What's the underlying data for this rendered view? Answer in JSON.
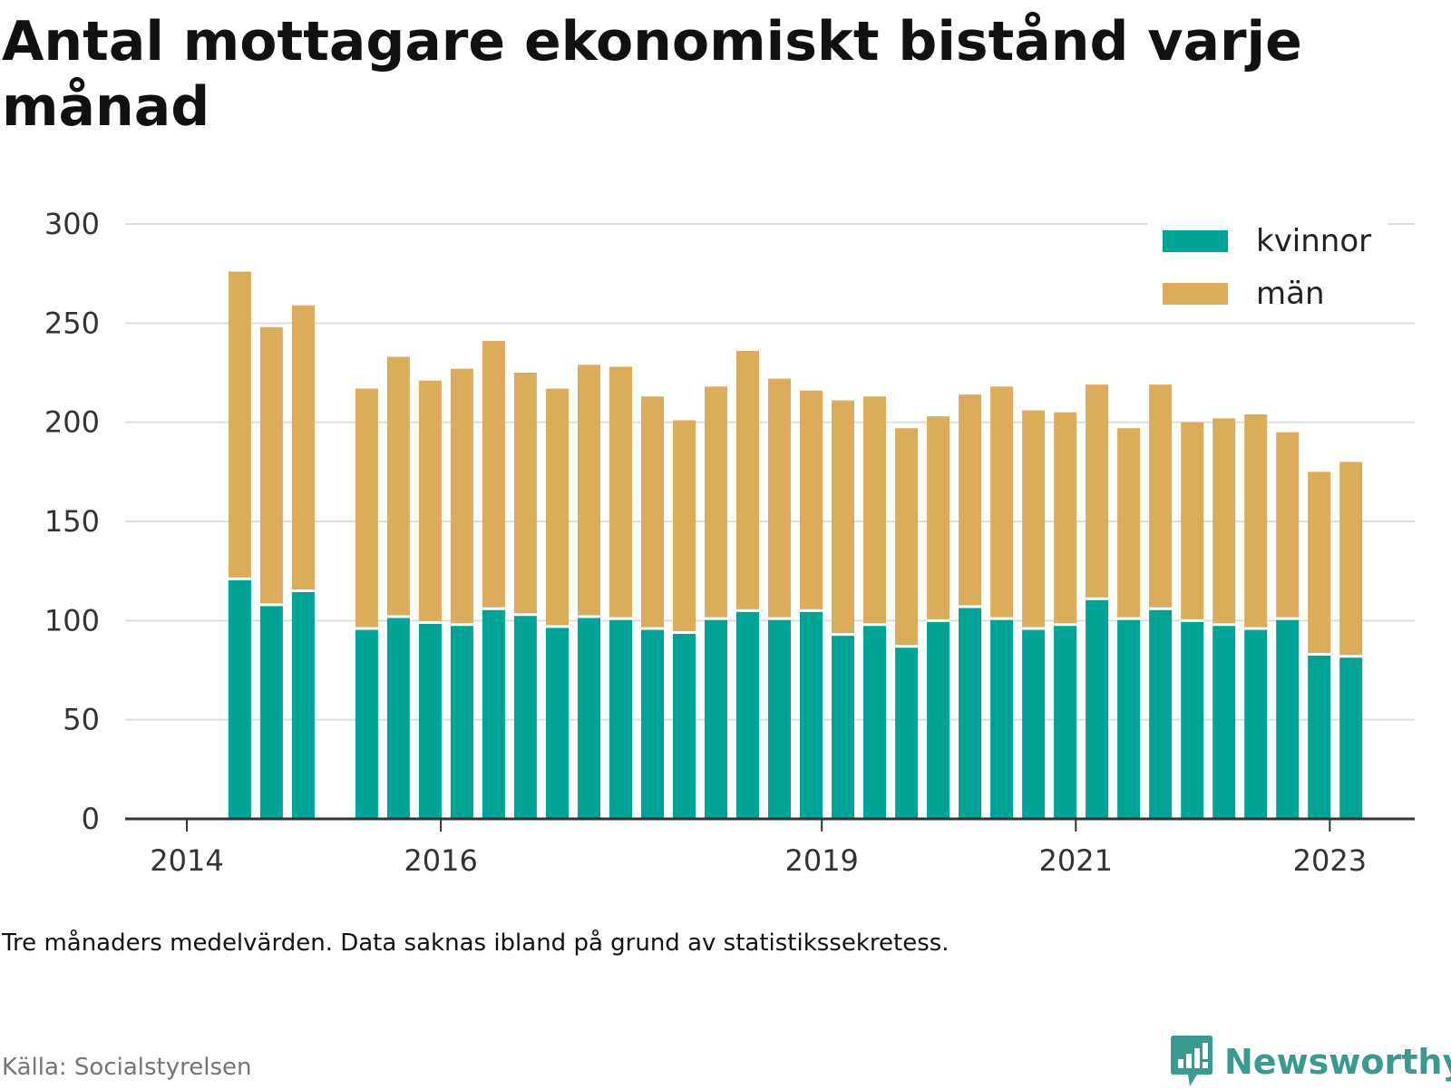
{
  "title": "Antal mottagare ekonomiskt bistånd varje månad",
  "note": "Tre månaders medelvärden. Data saknas ibland på grund av statistikssekretess.",
  "source": "Källa: Socialstyrelsen",
  "brand": "Newsworthy",
  "colors": {
    "kvinnor": "#00a497",
    "man": "#dbad5b",
    "grid": "#dddddd",
    "axis": "#333333",
    "brand": "#3a9a90"
  },
  "chart_data": {
    "type": "bar",
    "stacked": true,
    "title": "Antal mottagare ekonomiskt bistånd varje månad",
    "xlabel": "",
    "ylabel": "",
    "ylim": [
      0,
      300
    ],
    "yticks": [
      0,
      50,
      100,
      150,
      200,
      250,
      300
    ],
    "grid": true,
    "legend_position": "top-right",
    "xticks": [
      {
        "label": "2014",
        "date": "2014-01-01"
      },
      {
        "label": "2016",
        "date": "2016-01-01"
      },
      {
        "label": "2019",
        "date": "2019-01-01"
      },
      {
        "label": "2021",
        "date": "2021-01-01"
      },
      {
        "label": "2023",
        "date": "2023-01-01"
      }
    ],
    "x": [
      "2014-06",
      "2014-09",
      "2014-12",
      "2015-06",
      "2015-09",
      "2015-12",
      "2016-03",
      "2016-06",
      "2016-09",
      "2016-12",
      "2017-03",
      "2017-06",
      "2017-09",
      "2017-12",
      "2018-03",
      "2018-06",
      "2018-09",
      "2018-12",
      "2019-03",
      "2019-06",
      "2019-09",
      "2019-12",
      "2020-03",
      "2020-06",
      "2020-09",
      "2020-12",
      "2021-03",
      "2021-06",
      "2021-09",
      "2021-12",
      "2022-03",
      "2022-06",
      "2022-09",
      "2022-12",
      "2023-03"
    ],
    "series": [
      {
        "name": "kvinnor",
        "color": "#00a497",
        "values": [
          121,
          108,
          115,
          96,
          102,
          99,
          98,
          106,
          103,
          97,
          102,
          101,
          96,
          94,
          101,
          105,
          101,
          105,
          93,
          98,
          87,
          100,
          107,
          101,
          96,
          98,
          111,
          101,
          106,
          100,
          98,
          96,
          101,
          83,
          82
        ]
      },
      {
        "name": "män",
        "color": "#dbad5b",
        "values": [
          155,
          140,
          144,
          121,
          131,
          122,
          129,
          135,
          122,
          120,
          127,
          127,
          117,
          107,
          117,
          131,
          121,
          111,
          118,
          115,
          110,
          103,
          107,
          117,
          110,
          107,
          108,
          96,
          113,
          100,
          104,
          108,
          94,
          92,
          98
        ]
      }
    ]
  }
}
